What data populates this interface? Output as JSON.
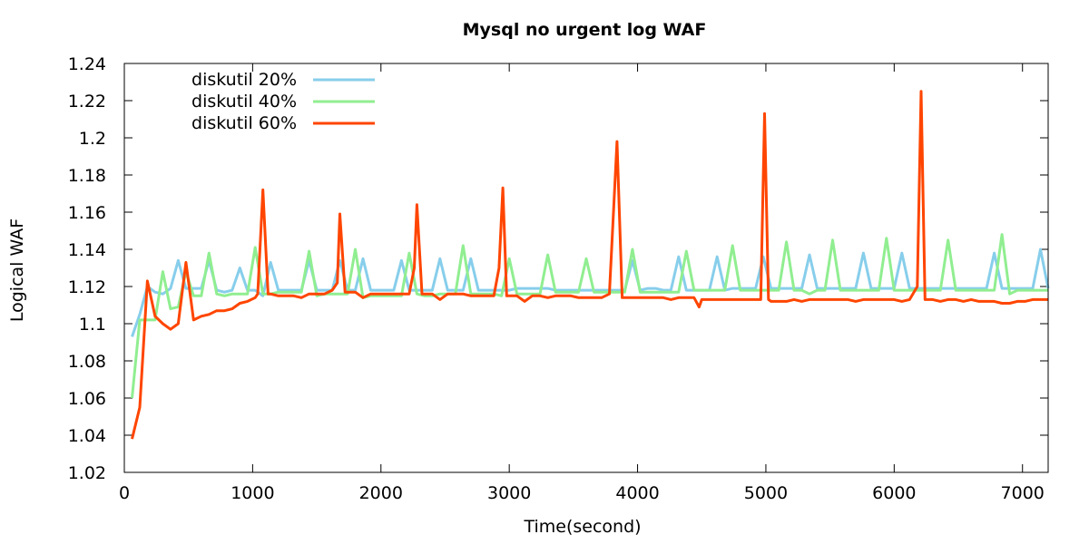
{
  "chart_data": {
    "type": "line",
    "title": "Mysql no urgent log WAF",
    "xlabel": "Time(second)",
    "ylabel": "Logical WAF",
    "xlim": [
      0,
      7200
    ],
    "ylim": [
      1.02,
      1.24
    ],
    "xticks": [
      0,
      1000,
      2000,
      3000,
      4000,
      5000,
      6000,
      7000
    ],
    "yticks": [
      1.02,
      1.04,
      1.06,
      1.08,
      1.1,
      1.12,
      1.14,
      1.16,
      1.18,
      1.2,
      1.22,
      1.24
    ],
    "ytick_labels": [
      "1.02",
      "1.04",
      "1.06",
      "1.08",
      "1.1",
      "1.12",
      "1.14",
      "1.16",
      "1.18",
      "1.2",
      "1.22",
      "1.24"
    ],
    "xtick_labels": [
      "0",
      "1000",
      "2000",
      "3000",
      "4000",
      "5000",
      "6000",
      "7000"
    ],
    "grid": false,
    "legend_position": "top-left",
    "series": [
      {
        "name": "diskutil 20%",
        "color": "#87ceeb",
        "x": [
          60,
          120,
          180,
          240,
          300,
          360,
          420,
          480,
          540,
          600,
          660,
          720,
          780,
          840,
          900,
          960,
          1020,
          1080,
          1140,
          1200,
          1260,
          1320,
          1380,
          1440,
          1500,
          1560,
          1620,
          1680,
          1740,
          1800,
          1860,
          1920,
          1980,
          2040,
          2100,
          2160,
          2220,
          2280,
          2340,
          2400,
          2460,
          2520,
          2580,
          2640,
          2700,
          2760,
          2820,
          2880,
          2940,
          3000,
          3060,
          3120,
          3180,
          3240,
          3300,
          3360,
          3420,
          3480,
          3540,
          3600,
          3660,
          3720,
          3780,
          3840,
          3900,
          3960,
          4020,
          4080,
          4140,
          4200,
          4260,
          4320,
          4380,
          4440,
          4500,
          4560,
          4620,
          4680,
          4740,
          4800,
          4860,
          4920,
          4980,
          5040,
          5100,
          5160,
          5220,
          5280,
          5340,
          5400,
          5460,
          5520,
          5580,
          5640,
          5700,
          5760,
          5820,
          5880,
          5940,
          6000,
          6060,
          6120,
          6180,
          6240,
          6300,
          6360,
          6420,
          6480,
          6540,
          6600,
          6660,
          6720,
          6780,
          6840,
          6900,
          6960,
          7020,
          7080,
          7140,
          7200
        ],
        "values": [
          1.093,
          1.105,
          1.12,
          1.117,
          1.116,
          1.119,
          1.134,
          1.119,
          1.119,
          1.119,
          1.134,
          1.118,
          1.117,
          1.118,
          1.13,
          1.118,
          1.118,
          1.115,
          1.133,
          1.118,
          1.118,
          1.118,
          1.118,
          1.134,
          1.118,
          1.118,
          1.118,
          1.134,
          1.118,
          1.118,
          1.135,
          1.118,
          1.118,
          1.118,
          1.118,
          1.134,
          1.118,
          1.118,
          1.118,
          1.118,
          1.135,
          1.118,
          1.118,
          1.118,
          1.135,
          1.118,
          1.118,
          1.118,
          1.118,
          1.118,
          1.119,
          1.119,
          1.119,
          1.119,
          1.119,
          1.118,
          1.118,
          1.118,
          1.118,
          1.118,
          1.118,
          1.118,
          1.118,
          1.118,
          1.118,
          1.134,
          1.118,
          1.119,
          1.119,
          1.118,
          1.118,
          1.136,
          1.118,
          1.118,
          1.118,
          1.118,
          1.136,
          1.118,
          1.119,
          1.119,
          1.119,
          1.119,
          1.136,
          1.119,
          1.119,
          1.119,
          1.119,
          1.119,
          1.137,
          1.119,
          1.119,
          1.119,
          1.119,
          1.119,
          1.119,
          1.138,
          1.119,
          1.119,
          1.119,
          1.119,
          1.138,
          1.119,
          1.119,
          1.119,
          1.119,
          1.119,
          1.119,
          1.119,
          1.119,
          1.119,
          1.119,
          1.119,
          1.138,
          1.119,
          1.119,
          1.119,
          1.119,
          1.119,
          1.14,
          1.119
        ]
      },
      {
        "name": "diskutil 40%",
        "color": "#90ee90",
        "x": [
          60,
          120,
          180,
          240,
          300,
          360,
          420,
          480,
          540,
          600,
          660,
          720,
          780,
          840,
          900,
          960,
          1020,
          1080,
          1140,
          1200,
          1260,
          1320,
          1380,
          1440,
          1500,
          1560,
          1620,
          1680,
          1740,
          1800,
          1860,
          1920,
          1980,
          2040,
          2100,
          2160,
          2220,
          2280,
          2340,
          2400,
          2460,
          2520,
          2580,
          2640,
          2700,
          2760,
          2820,
          2880,
          2940,
          3000,
          3060,
          3120,
          3180,
          3240,
          3300,
          3360,
          3420,
          3480,
          3540,
          3600,
          3660,
          3720,
          3780,
          3840,
          3900,
          3960,
          4020,
          4080,
          4140,
          4200,
          4260,
          4320,
          4380,
          4440,
          4500,
          4560,
          4620,
          4680,
          4740,
          4800,
          4860,
          4920,
          4980,
          5040,
          5100,
          5160,
          5220,
          5280,
          5340,
          5400,
          5460,
          5520,
          5580,
          5640,
          5700,
          5760,
          5820,
          5880,
          5940,
          6000,
          6060,
          6120,
          6180,
          6240,
          6300,
          6360,
          6420,
          6480,
          6540,
          6600,
          6660,
          6720,
          6780,
          6840,
          6900,
          6960,
          7020,
          7080,
          7140,
          7200
        ],
        "values": [
          1.06,
          1.102,
          1.102,
          1.102,
          1.128,
          1.108,
          1.109,
          1.128,
          1.115,
          1.115,
          1.138,
          1.116,
          1.115,
          1.116,
          1.116,
          1.116,
          1.141,
          1.116,
          1.116,
          1.117,
          1.117,
          1.117,
          1.117,
          1.139,
          1.115,
          1.116,
          1.116,
          1.116,
          1.116,
          1.14,
          1.114,
          1.115,
          1.115,
          1.115,
          1.115,
          1.115,
          1.138,
          1.116,
          1.115,
          1.115,
          1.116,
          1.116,
          1.116,
          1.142,
          1.116,
          1.116,
          1.116,
          1.116,
          1.115,
          1.135,
          1.116,
          1.116,
          1.116,
          1.116,
          1.137,
          1.117,
          1.117,
          1.117,
          1.117,
          1.135,
          1.117,
          1.117,
          1.117,
          1.117,
          1.117,
          1.14,
          1.117,
          1.117,
          1.117,
          1.117,
          1.117,
          1.117,
          1.139,
          1.118,
          1.118,
          1.118,
          1.118,
          1.118,
          1.142,
          1.118,
          1.118,
          1.118,
          1.118,
          1.118,
          1.118,
          1.144,
          1.118,
          1.118,
          1.116,
          1.118,
          1.118,
          1.145,
          1.118,
          1.118,
          1.118,
          1.118,
          1.118,
          1.118,
          1.146,
          1.118,
          1.118,
          1.118,
          1.118,
          1.118,
          1.118,
          1.118,
          1.145,
          1.118,
          1.118,
          1.118,
          1.118,
          1.118,
          1.118,
          1.148,
          1.116,
          1.118,
          1.118,
          1.118,
          1.118,
          1.118
        ]
      },
      {
        "name": "diskutil 60%",
        "color": "#ff4500",
        "x": [
          60,
          120,
          180,
          240,
          300,
          360,
          420,
          480,
          540,
          600,
          660,
          720,
          780,
          840,
          900,
          960,
          1020,
          1040,
          1080,
          1120,
          1140,
          1200,
          1260,
          1320,
          1380,
          1440,
          1500,
          1560,
          1620,
          1660,
          1680,
          1720,
          1800,
          1860,
          1920,
          1980,
          2040,
          2100,
          2160,
          2220,
          2260,
          2280,
          2320,
          2400,
          2460,
          2520,
          2580,
          2640,
          2700,
          2760,
          2820,
          2880,
          2920,
          2950,
          2980,
          3060,
          3120,
          3180,
          3240,
          3300,
          3360,
          3420,
          3480,
          3540,
          3600,
          3660,
          3720,
          3780,
          3840,
          3880,
          3960,
          4020,
          4080,
          4140,
          4200,
          4260,
          4320,
          4380,
          4440,
          4480,
          4500,
          4560,
          4620,
          4680,
          4740,
          4800,
          4860,
          4920,
          4960,
          4990,
          5020,
          5040,
          5100,
          5160,
          5220,
          5280,
          5340,
          5400,
          5460,
          5520,
          5580,
          5640,
          5700,
          5760,
          5820,
          5880,
          5940,
          6000,
          6060,
          6120,
          6180,
          6210,
          6240,
          6270,
          6300,
          6360,
          6420,
          6480,
          6540,
          6600,
          6660,
          6720,
          6780,
          6840,
          6900,
          6960,
          7020,
          7080,
          7140,
          7200
        ],
        "values": [
          1.038,
          1.055,
          1.123,
          1.104,
          1.1,
          1.097,
          1.1,
          1.133,
          1.102,
          1.104,
          1.105,
          1.107,
          1.107,
          1.108,
          1.111,
          1.112,
          1.114,
          1.116,
          1.172,
          1.116,
          1.116,
          1.115,
          1.115,
          1.115,
          1.114,
          1.116,
          1.116,
          1.116,
          1.118,
          1.122,
          1.159,
          1.117,
          1.117,
          1.114,
          1.116,
          1.116,
          1.116,
          1.116,
          1.116,
          1.116,
          1.13,
          1.164,
          1.116,
          1.116,
          1.113,
          1.116,
          1.116,
          1.116,
          1.115,
          1.115,
          1.115,
          1.115,
          1.13,
          1.173,
          1.115,
          1.115,
          1.112,
          1.115,
          1.115,
          1.114,
          1.115,
          1.115,
          1.115,
          1.114,
          1.114,
          1.114,
          1.114,
          1.116,
          1.198,
          1.114,
          1.114,
          1.114,
          1.114,
          1.114,
          1.114,
          1.113,
          1.114,
          1.114,
          1.114,
          1.109,
          1.113,
          1.113,
          1.113,
          1.113,
          1.113,
          1.113,
          1.113,
          1.113,
          1.113,
          1.213,
          1.113,
          1.112,
          1.112,
          1.112,
          1.113,
          1.112,
          1.113,
          1.113,
          1.113,
          1.113,
          1.113,
          1.113,
          1.112,
          1.113,
          1.113,
          1.113,
          1.113,
          1.113,
          1.112,
          1.113,
          1.12,
          1.225,
          1.113,
          1.113,
          1.113,
          1.112,
          1.113,
          1.113,
          1.112,
          1.113,
          1.112,
          1.112,
          1.112,
          1.111,
          1.111,
          1.112,
          1.112,
          1.113,
          1.113,
          1.113
        ]
      }
    ]
  }
}
